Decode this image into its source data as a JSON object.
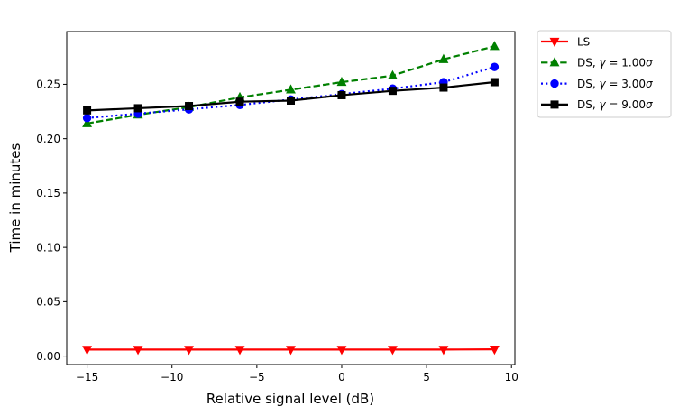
{
  "chart_data": {
    "type": "line",
    "xlabel": "Relative signal level (dB)",
    "ylabel": "Time in minutes",
    "xlim": [
      -16.2,
      10.2
    ],
    "ylim": [
      -0.0078,
      0.2985
    ],
    "xticks": [
      -15,
      -10,
      -5,
      0,
      5,
      10
    ],
    "xtick_labels": [
      "−15",
      "−10",
      "−5",
      "0",
      "5",
      "10"
    ],
    "yticks": [
      0.0,
      0.05,
      0.1,
      0.15,
      0.2,
      0.25
    ],
    "ytick_labels": [
      "0.00",
      "0.05",
      "0.10",
      "0.15",
      "0.20",
      "0.25"
    ],
    "grid": false,
    "legend_position": "outside upper right",
    "x": [
      -15,
      -12,
      -9,
      -6,
      -3,
      0,
      3,
      6,
      9
    ],
    "series": [
      {
        "name_prefix": "LS",
        "gamma_text": "",
        "color": "#ff0000",
        "linestyle": "solid",
        "marker": "triangle-down",
        "values": [
          0.006,
          0.006,
          0.006,
          0.006,
          0.006,
          0.006,
          0.006,
          0.006,
          0.0062
        ]
      },
      {
        "name_prefix": "DS, ",
        "gamma_text": " = 1.00",
        "color": "#008000",
        "linestyle": "dashed",
        "marker": "triangle-up",
        "values": [
          0.214,
          0.222,
          0.229,
          0.238,
          0.245,
          0.252,
          0.258,
          0.273,
          0.285
        ]
      },
      {
        "name_prefix": "DS, ",
        "gamma_text": " = 3.00",
        "color": "#0000ff",
        "linestyle": "dotted",
        "marker": "circle",
        "values": [
          0.219,
          0.223,
          0.227,
          0.231,
          0.236,
          0.241,
          0.246,
          0.252,
          0.266
        ]
      },
      {
        "name_prefix": "DS, ",
        "gamma_text": " = 9.00",
        "color": "#000000",
        "linestyle": "solid",
        "marker": "square",
        "values": [
          0.226,
          0.228,
          0.23,
          0.234,
          0.235,
          0.24,
          0.244,
          0.247,
          0.252
        ]
      }
    ]
  }
}
